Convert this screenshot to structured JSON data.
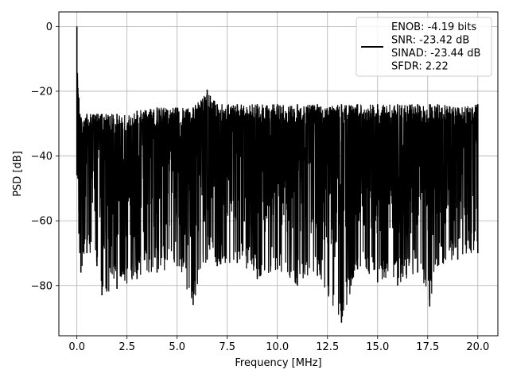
{
  "chart_data": {
    "type": "line",
    "title": "",
    "xlabel": "Frequency [MHz]",
    "ylabel": "PSD [dB]",
    "xlim": [
      -0.9,
      21.0
    ],
    "ylim": [
      -95.5,
      4.5
    ],
    "xticks": [
      0.0,
      2.5,
      5.0,
      7.5,
      10.0,
      12.5,
      15.0,
      17.5,
      20.0
    ],
    "xtick_labels": [
      "0.0",
      "2.5",
      "5.0",
      "7.5",
      "10.0",
      "12.5",
      "15.0",
      "17.5",
      "20.0"
    ],
    "yticks": [
      0,
      -20,
      -40,
      -60,
      -80
    ],
    "ytick_labels": [
      "0",
      "−20",
      "−40",
      "−60",
      "−80"
    ],
    "grid": true,
    "legend_position": "top-right",
    "series": [
      {
        "name": "ENOB: -4.19 bits\nSNR: -23.42 dB\nSINAD: -23.44 dB\nSFDR: 2.22",
        "color": "#000000",
        "description": "noise floor PSD, dense black trace",
        "x": [
          0.0,
          0.05,
          0.1,
          0.15,
          0.2,
          0.5,
          1.0,
          1.25,
          2.0,
          3.0,
          4.0,
          5.0,
          5.8,
          6.5,
          7.0,
          8.0,
          9.0,
          10.0,
          11.0,
          12.0,
          13.2,
          14.0,
          15.0,
          16.0,
          17.0,
          17.6,
          18.0,
          19.0,
          20.0
        ],
        "y_max": [
          0.0,
          -19,
          -22,
          -27,
          -28,
          -27,
          -27,
          -27,
          -27,
          -26,
          -25,
          -25,
          -25,
          -19.5,
          -24,
          -24,
          -24,
          -24,
          -24,
          -24,
          -24,
          -24,
          -24,
          -24,
          -24,
          -24,
          -24,
          -25,
          -24
        ],
        "y_min": [
          -46,
          -47,
          -64,
          -70,
          -76,
          -70,
          -74,
          -83,
          -81,
          -78,
          -76,
          -74,
          -86,
          -72,
          -74,
          -73,
          -78,
          -75,
          -80,
          -77,
          -91.5,
          -75,
          -79,
          -80,
          -76,
          -86.5,
          -74,
          -72,
          -70
        ],
        "floor_mean": -42
      }
    ],
    "legend": [
      {
        "label_lines": [
          "ENOB: -4.19 bits",
          "SNR: -23.42 dB",
          "SINAD: -23.44 dB",
          "SFDR: 2.22"
        ],
        "color": "#000000"
      }
    ]
  }
}
